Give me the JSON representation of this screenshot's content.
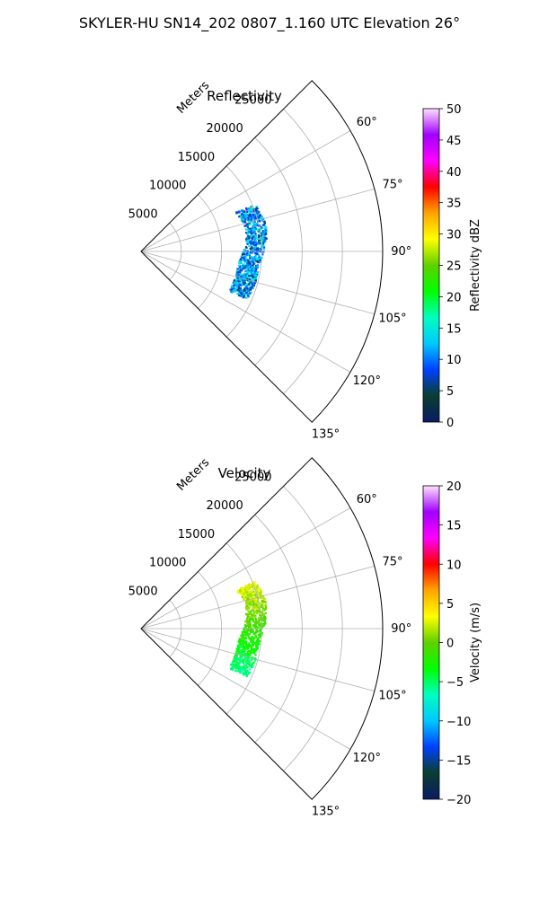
{
  "title": "SKYLER-HU  SN14_202  0807_1.160 UTC Elevation 26°",
  "chart_data": [
    {
      "type": "polar-sector",
      "title": "Reflectivity",
      "radial_label": "Meters",
      "radial_ticks": [
        5000,
        10000,
        15000,
        20000,
        25000
      ],
      "radial_tick_labels": [
        "5000",
        "10000",
        "15000",
        "20000",
        "25000"
      ],
      "rmax": 30000,
      "angle_range": [
        45,
        135
      ],
      "angle_ticks": [
        60,
        75,
        90,
        105,
        120,
        135
      ],
      "angle_tick_labels": [
        "60°",
        "75°",
        "90°",
        "105°",
        "120°",
        "135°"
      ],
      "grid": true,
      "colorbar": {
        "label": "Reflectivity dBZ",
        "range": [
          0,
          50
        ],
        "ticks": [
          0,
          5,
          10,
          15,
          20,
          25,
          30,
          35,
          40,
          45,
          50
        ],
        "tick_labels": [
          "0",
          "5",
          "10",
          "15",
          "20",
          "25",
          "30",
          "35",
          "40",
          "45",
          "50"
        ]
      },
      "echo_band": {
        "value_range": [
          5,
          16
        ],
        "arcs": [
          {
            "angle": 67,
            "range_m": 14000
          },
          {
            "angle": 76,
            "range_m": 14500
          },
          {
            "angle": 84,
            "range_m": 14300
          },
          {
            "angle": 91,
            "range_m": 13700
          },
          {
            "angle": 98,
            "range_m": 13300
          },
          {
            "angle": 104,
            "range_m": 13300
          },
          {
            "angle": 110,
            "range_m": 13200
          },
          {
            "angle": 114,
            "range_m": 13100
          }
        ]
      }
    },
    {
      "type": "polar-sector",
      "title": "Velocity",
      "radial_label": "Meters",
      "radial_ticks": [
        5000,
        10000,
        15000,
        20000,
        25000
      ],
      "radial_tick_labels": [
        "5000",
        "10000",
        "15000",
        "20000",
        "25000"
      ],
      "rmax": 30000,
      "angle_range": [
        45,
        135
      ],
      "angle_ticks": [
        60,
        75,
        90,
        105,
        120,
        135
      ],
      "angle_tick_labels": [
        "60°",
        "75°",
        "90°",
        "105°",
        "120°",
        "135°"
      ],
      "grid": true,
      "colorbar": {
        "label": "Velocity (m/s)",
        "range": [
          -20,
          20
        ],
        "ticks": [
          -20,
          -15,
          -10,
          -5,
          0,
          5,
          10,
          15,
          20
        ],
        "tick_labels": [
          "−20",
          "−15",
          "−10",
          "−5",
          "0",
          "5",
          "10",
          "15",
          "20"
        ]
      },
      "echo_band": {
        "value_range": [
          -6,
          3
        ],
        "arcs": [
          {
            "angle": 67,
            "range_m": 14000
          },
          {
            "angle": 76,
            "range_m": 14500
          },
          {
            "angle": 84,
            "range_m": 14300
          },
          {
            "angle": 91,
            "range_m": 13700
          },
          {
            "angle": 98,
            "range_m": 13300
          },
          {
            "angle": 104,
            "range_m": 13300
          },
          {
            "angle": 110,
            "range_m": 13200
          },
          {
            "angle": 114,
            "range_m": 13100
          }
        ]
      }
    }
  ],
  "colormap_stops": [
    "#0a1a66",
    "#0a3f2e",
    "#0040ff",
    "#00c8ff",
    "#00ffc0",
    "#00ff00",
    "#60d000",
    "#ffff00",
    "#ffa500",
    "#ff0000",
    "#ff00ff",
    "#a000ff",
    "#ffe0ff"
  ]
}
